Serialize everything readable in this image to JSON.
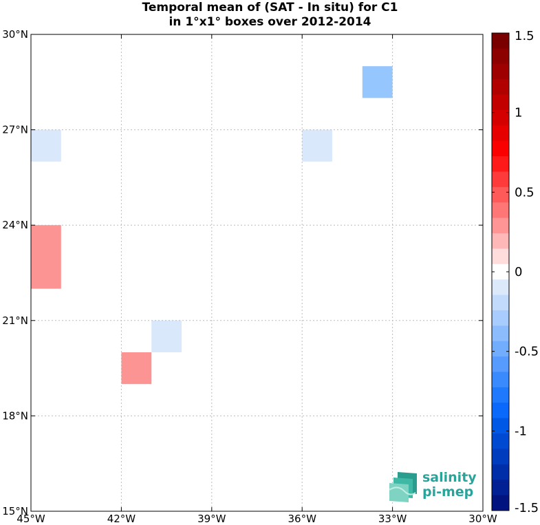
{
  "title_line1": "Temporal mean of (SAT - In situ) for C1",
  "title_line2": "in 1°x1° boxes over 2012-2014",
  "logo": {
    "line1": "salinity",
    "line2": "pi-mep"
  },
  "chart_data": {
    "type": "heatmap",
    "title": "Temporal mean of (SAT - In situ) for C1 in 1°x1° boxes over 2012-2014",
    "xlim": [
      -45,
      -30
    ],
    "ylim": [
      15,
      30
    ],
    "grid": true,
    "x_ticks": [
      {
        "value": -45,
        "label": "45°W"
      },
      {
        "value": -42,
        "label": "42°W"
      },
      {
        "value": -39,
        "label": "39°W"
      },
      {
        "value": -36,
        "label": "36°W"
      },
      {
        "value": -33,
        "label": "33°W"
      },
      {
        "value": -30,
        "label": "30°W"
      }
    ],
    "y_ticks": [
      {
        "value": 15,
        "label": "15°N"
      },
      {
        "value": 18,
        "label": "18°N"
      },
      {
        "value": 21,
        "label": "21°N"
      },
      {
        "value": 24,
        "label": "24°N"
      },
      {
        "value": 27,
        "label": "27°N"
      },
      {
        "value": 30,
        "label": "30°N"
      }
    ],
    "cells": [
      {
        "lon_min": -45,
        "lon_max": -44,
        "lat_min": 26,
        "lat_max": 27,
        "value": -0.15,
        "color": "#d9e8fb"
      },
      {
        "lon_min": -36,
        "lon_max": -35,
        "lat_min": 26,
        "lat_max": 27,
        "value": -0.15,
        "color": "#d9e8fb"
      },
      {
        "lon_min": -34,
        "lon_max": -33,
        "lat_min": 28,
        "lat_max": 29,
        "value": -0.35,
        "color": "#95c6fd"
      },
      {
        "lon_min": -45,
        "lon_max": -44,
        "lat_min": 22,
        "lat_max": 24,
        "value": 0.35,
        "color": "#fd9494"
      },
      {
        "lon_min": -41,
        "lon_max": -40,
        "lat_min": 20,
        "lat_max": 21,
        "value": -0.15,
        "color": "#d9e8fb"
      },
      {
        "lon_min": -42,
        "lon_max": -41,
        "lat_min": 19,
        "lat_max": 20,
        "value": 0.35,
        "color": "#fd9494"
      }
    ],
    "colorbar": {
      "range": [
        -1.5,
        1.5
      ],
      "ticks": [
        {
          "value": 1.5,
          "label": "1.5"
        },
        {
          "value": 1,
          "label": "1"
        },
        {
          "value": 0.5,
          "label": "0.5"
        },
        {
          "value": 0,
          "label": "0"
        },
        {
          "value": -0.5,
          "label": "-0.5"
        },
        {
          "value": -1,
          "label": "-1"
        },
        {
          "value": -1.5,
          "label": "-1.5"
        }
      ],
      "colors_top_to_bottom": [
        "#7a0000",
        "#8c0000",
        "#9e0000",
        "#b00000",
        "#c20000",
        "#d40000",
        "#e60000",
        "#fa0000",
        "#ff1a1a",
        "#ff3a3a",
        "#ff5a5a",
        "#ff7676",
        "#ff9595",
        "#ffb8b8",
        "#ffdddd",
        "#ffffff",
        "#dbe9fb",
        "#c2dbfc",
        "#a8ccfd",
        "#8dbcfd",
        "#72acfd",
        "#569bfd",
        "#3a8afd",
        "#1e79fd",
        "#0a68fa",
        "#0058e6",
        "#004ad2",
        "#003cbe",
        "#002ea8",
        "#002094",
        "#00137e"
      ]
    }
  }
}
